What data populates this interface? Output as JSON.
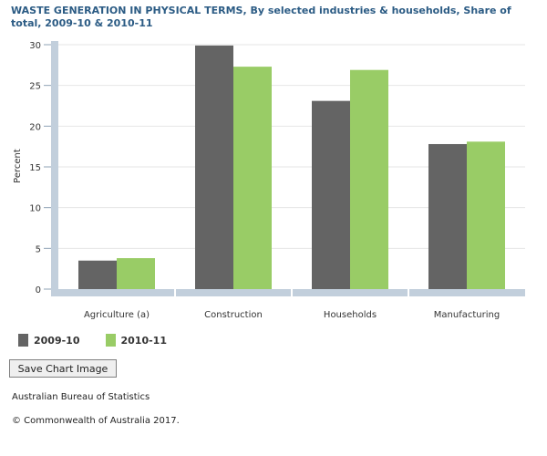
{
  "title": "WASTE GENERATION IN PHYSICAL TERMS, By selected industries & households, Share of total, 2009-10 & 2010-11",
  "save_button_label": "Save Chart Image",
  "source": "Australian Bureau of Statistics",
  "copyright": "© Commonwealth of Australia 2017.",
  "colors": {
    "series_2009_10": "#646464",
    "series_2010_11": "#99cc66",
    "title": "#2b5b84",
    "axis_band": "#c2cfdc",
    "grid": "#e6e6e6"
  },
  "chart_data": {
    "type": "bar",
    "title": "WASTE GENERATION IN PHYSICAL TERMS, By selected industries & households, Share of total, 2009-10 & 2010-11",
    "xlabel": "",
    "ylabel": "Percent",
    "categories": [
      "Agriculture (a)",
      "Construction",
      "Households",
      "Manufacturing"
    ],
    "series": [
      {
        "name": "2009-10",
        "color": "#646464",
        "values": [
          3.5,
          29.9,
          23.1,
          17.8
        ]
      },
      {
        "name": "2010-11",
        "color": "#99cc66",
        "values": [
          3.8,
          27.3,
          26.9,
          18.1
        ]
      }
    ],
    "ylim": [
      0,
      30
    ],
    "yticks": [
      0,
      5,
      10,
      15,
      20,
      25,
      30
    ],
    "grid": true,
    "legend_position": "bottom-left"
  }
}
